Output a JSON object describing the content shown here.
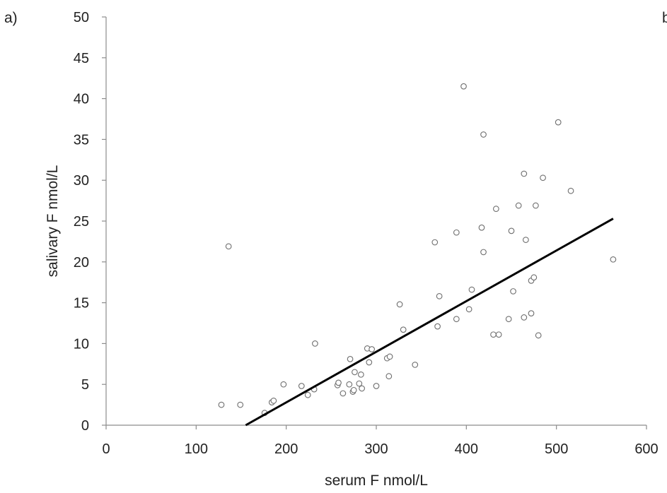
{
  "panel_label": "a)",
  "edge_fragment": "b",
  "chart_data": {
    "type": "scatter",
    "title": "",
    "xlabel": "serum F nmol/L",
    "ylabel": "salivary F nmol/L",
    "xlim": [
      0,
      600
    ],
    "ylim": [
      0,
      50
    ],
    "x_ticks": [
      "0",
      "100",
      "200",
      "300",
      "400",
      "500",
      "600"
    ],
    "y_ticks": [
      "0",
      "5",
      "10",
      "15",
      "20",
      "25",
      "30",
      "35",
      "40",
      "45",
      "50"
    ],
    "x_tick_values": [
      0,
      100,
      200,
      300,
      400,
      500,
      600
    ],
    "y_tick_values": [
      0,
      5,
      10,
      15,
      20,
      25,
      30,
      35,
      40,
      45,
      50
    ],
    "grid": false,
    "marker_color": "#6e6e6e",
    "line_color": "#000000",
    "points": [
      [
        128,
        2.5
      ],
      [
        136,
        21.9
      ],
      [
        149,
        2.5
      ],
      [
        176,
        1.5
      ],
      [
        184,
        2.8
      ],
      [
        186,
        3.0
      ],
      [
        197,
        5.0
      ],
      [
        217,
        4.8
      ],
      [
        224,
        3.7
      ],
      [
        231,
        4.4
      ],
      [
        232,
        10.0
      ],
      [
        257,
        4.9
      ],
      [
        258,
        5.2
      ],
      [
        263,
        3.9
      ],
      [
        270,
        5.0
      ],
      [
        271,
        8.1
      ],
      [
        274,
        4.1
      ],
      [
        275,
        4.3
      ],
      [
        276,
        6.5
      ],
      [
        281,
        5.1
      ],
      [
        283,
        6.2
      ],
      [
        284,
        4.5
      ],
      [
        290,
        9.4
      ],
      [
        292,
        7.7
      ],
      [
        295,
        9.3
      ],
      [
        300,
        4.8
      ],
      [
        312,
        8.2
      ],
      [
        314,
        6.0
      ],
      [
        315,
        8.4
      ],
      [
        326,
        14.8
      ],
      [
        330,
        11.7
      ],
      [
        343,
        7.4
      ],
      [
        365,
        22.4
      ],
      [
        368,
        12.1
      ],
      [
        370,
        15.8
      ],
      [
        389,
        23.6
      ],
      [
        389,
        13.0
      ],
      [
        397,
        41.5
      ],
      [
        403,
        14.2
      ],
      [
        406,
        16.6
      ],
      [
        417,
        24.2
      ],
      [
        419,
        35.6
      ],
      [
        419,
        21.2
      ],
      [
        430,
        11.1
      ],
      [
        433,
        26.5
      ],
      [
        436,
        11.1
      ],
      [
        447,
        13.0
      ],
      [
        450,
        23.8
      ],
      [
        452,
        16.4
      ],
      [
        458,
        26.9
      ],
      [
        464,
        30.8
      ],
      [
        464,
        13.2
      ],
      [
        466,
        22.7
      ],
      [
        472,
        17.7
      ],
      [
        472,
        13.7
      ],
      [
        475,
        18.1
      ],
      [
        477,
        26.9
      ],
      [
        480,
        11.0
      ],
      [
        485,
        30.3
      ],
      [
        502,
        37.1
      ],
      [
        516,
        28.7
      ],
      [
        563,
        20.3
      ]
    ],
    "trendline": {
      "x": [
        155,
        563
      ],
      "y": [
        0,
        25.3
      ]
    }
  }
}
